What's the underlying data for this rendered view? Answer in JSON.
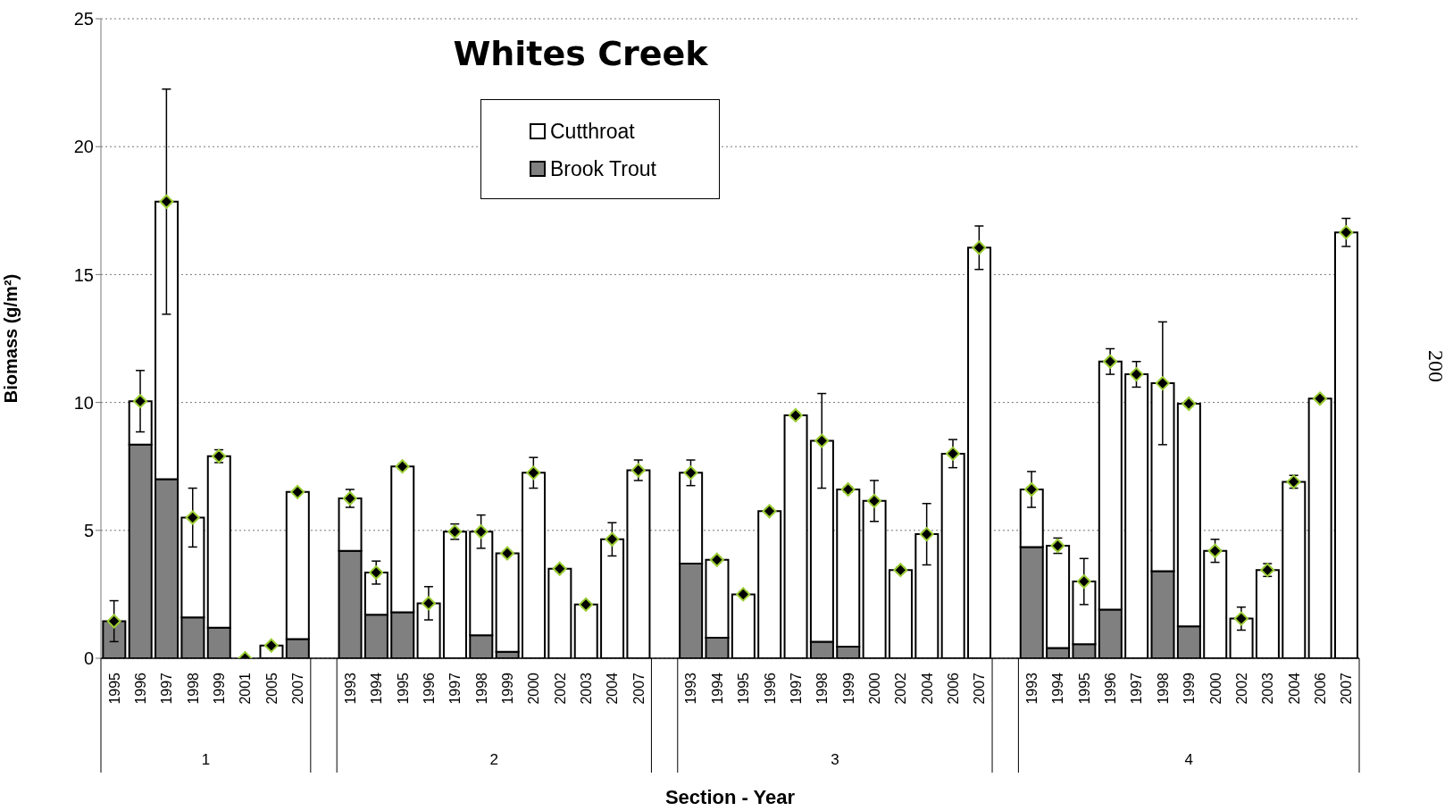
{
  "chart_data": {
    "type": "bar",
    "stacked": true,
    "title": "Whites Creek",
    "xlabel": "Section - Year",
    "ylabel": "Biomass (g/m²)",
    "categories": [
      "1995",
      "1996",
      "1997",
      "1998",
      "1999",
      "2001",
      "2005",
      "2007",
      null,
      "1993",
      "1994",
      "1995",
      "1996",
      "1997",
      "1998",
      "1999",
      "2000",
      "2002",
      "2003",
      "2004",
      "2007",
      null,
      "1993",
      "1994",
      "1995",
      "1996",
      "1997",
      "1998",
      "1999",
      "2000",
      "2002",
      "2004",
      "2006",
      "2007",
      null,
      "1993",
      "1994",
      "1995",
      "1996",
      "1997",
      "1998",
      "1999",
      "2000",
      "2002",
      "2003",
      "2004",
      "2006",
      "2007"
    ],
    "series": [
      {
        "name": "Brook Trout",
        "color": "#808080",
        "values": [
          1.45,
          8.35,
          7.0,
          1.6,
          1.2,
          0,
          0,
          0.75,
          null,
          4.2,
          1.7,
          1.8,
          0,
          0,
          0.9,
          0.25,
          0,
          0,
          0,
          0,
          0,
          null,
          3.7,
          0.8,
          0,
          0,
          0,
          0.65,
          0.45,
          0,
          0,
          0,
          0,
          0,
          null,
          4.35,
          0.4,
          0.55,
          1.9,
          0,
          3.4,
          1.25,
          0,
          0,
          0,
          0,
          0,
          0
        ]
      },
      {
        "name": "Cutthroat",
        "color": "#ffffff",
        "values": [
          0,
          1.7,
          10.85,
          3.9,
          6.7,
          0,
          0.5,
          5.75,
          null,
          2.05,
          1.65,
          5.7,
          2.15,
          4.95,
          4.05,
          3.85,
          7.25,
          3.5,
          2.1,
          4.65,
          7.35,
          null,
          3.55,
          3.05,
          2.5,
          5.75,
          9.5,
          7.85,
          6.15,
          6.15,
          3.45,
          4.85,
          8.0,
          16.05,
          null,
          2.25,
          4.0,
          2.45,
          9.7,
          11.1,
          7.35,
          8.7,
          4.2,
          1.55,
          3.45,
          6.9,
          10.15,
          16.65
        ]
      },
      {
        "type": "scatter",
        "color": "#000000",
        "marker": "diamond",
        "values": [
          1.45,
          10.05,
          17.85,
          5.5,
          7.9,
          0,
          0.5,
          6.5,
          null,
          6.25,
          3.35,
          7.5,
          2.15,
          4.95,
          4.95,
          4.1,
          7.25,
          3.5,
          2.1,
          4.65,
          7.35,
          null,
          7.25,
          3.85,
          2.5,
          5.75,
          9.5,
          8.5,
          6.6,
          6.15,
          3.45,
          4.85,
          8.0,
          16.05,
          null,
          6.6,
          4.4,
          3.0,
          11.6,
          11.1,
          10.75,
          9.95,
          4.2,
          1.55,
          3.45,
          6.9,
          10.15,
          16.65
        ],
        "errors": [
          0.8,
          1.2,
          4.4,
          1.15,
          0.25,
          null,
          null,
          null,
          null,
          0.35,
          0.45,
          0.1,
          0.65,
          0.3,
          0.65,
          0.1,
          0.6,
          0.1,
          0.1,
          0.65,
          0.4,
          null,
          0.5,
          0.1,
          0.1,
          0.1,
          0.1,
          1.85,
          0.1,
          0.8,
          0.1,
          1.2,
          0.55,
          0.85,
          null,
          0.7,
          0.3,
          0.9,
          0.5,
          0.5,
          2.4,
          0.1,
          0.45,
          0.45,
          0.25,
          0.25,
          0.1,
          0.55
        ]
      }
    ],
    "ylim": [
      0,
      25
    ],
    "yticks": [
      0,
      5,
      10,
      15,
      20,
      25
    ],
    "grid": "y",
    "legend": "top",
    "annotations": [
      "1",
      "2",
      "3",
      "4",
      "200"
    ]
  }
}
